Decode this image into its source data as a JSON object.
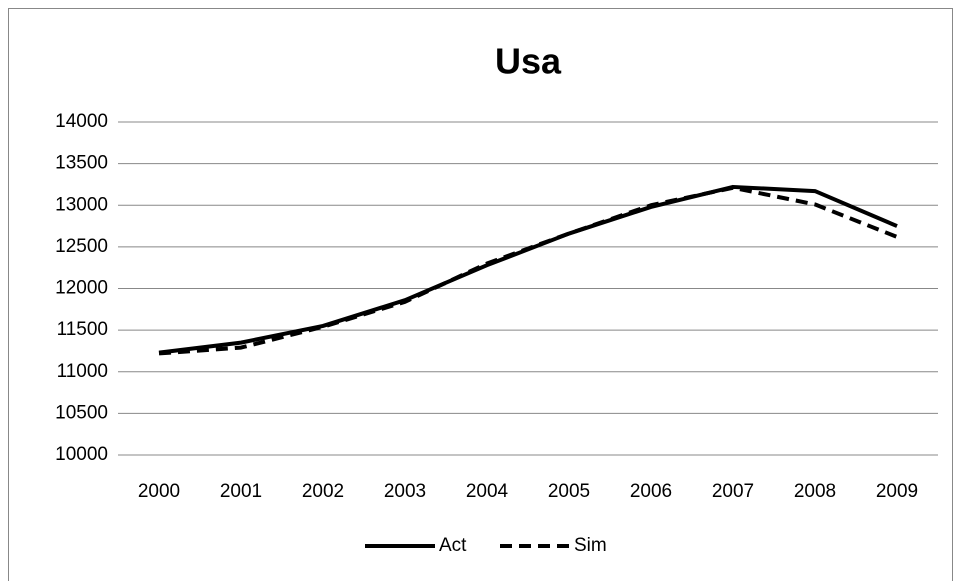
{
  "chart_data": {
    "type": "line",
    "title": "Usa",
    "categories": [
      "2000",
      "2001",
      "2002",
      "2003",
      "2004",
      "2005",
      "2006",
      "2007",
      "2008",
      "2009"
    ],
    "series": [
      {
        "name": "Act",
        "color": "#000000",
        "dash": false,
        "values": [
          11230,
          11350,
          11550,
          11860,
          12280,
          12660,
          12980,
          13220,
          13170,
          12750
        ]
      },
      {
        "name": "Sim",
        "color": "#000000",
        "dash": true,
        "values": [
          11220,
          11290,
          11540,
          11840,
          12300,
          12660,
          13000,
          13210,
          13010,
          12620
        ]
      }
    ],
    "ylim": [
      10000,
      14000
    ],
    "yticks": [
      10000,
      10500,
      11000,
      11500,
      12000,
      12500,
      13000,
      13500,
      14000
    ],
    "grid": true,
    "legend": "bottom"
  }
}
